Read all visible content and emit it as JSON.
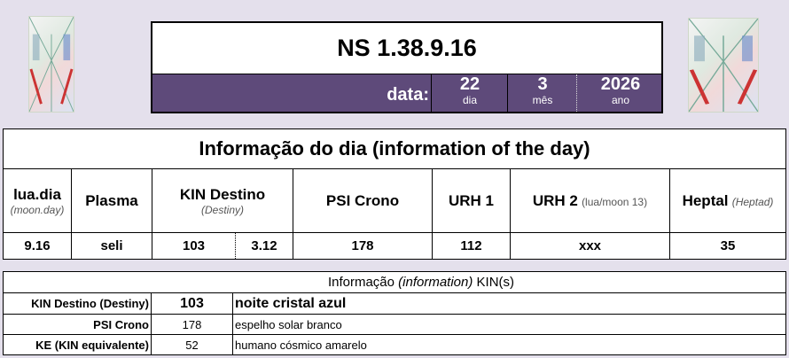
{
  "header": {
    "title": "NS 1.38.9.16",
    "date_label": "data:",
    "day": "22",
    "day_label": "dia",
    "month": "3",
    "month_label": "mês",
    "year": "2026",
    "year_label": "ano"
  },
  "info": {
    "title": "Informação do dia (information of the day)",
    "headers": [
      {
        "main": "lua.dia",
        "sub": "(moon.day)"
      },
      {
        "main": "Plasma"
      },
      {
        "main": "KIN Destino",
        "sub": "(Destiny)"
      },
      {
        "main": "PSI Crono"
      },
      {
        "main": "URH 1"
      },
      {
        "main": "URH 2",
        "sub": "(lua/moon 13)"
      },
      {
        "main": "Heptal",
        "sub": "(Heptad)"
      }
    ],
    "values": [
      "9.16",
      "seli",
      "103",
      "3.12",
      "178",
      "112",
      "xxx",
      "35"
    ]
  },
  "kin": {
    "title_a": "Informação ",
    "title_b": "(information)",
    "title_c": " KIN(s)",
    "rows": [
      {
        "label": "KIN Destino (Destiny)",
        "num": "103",
        "name": "noite cristal azul"
      },
      {
        "label": "PSI Crono",
        "num": "178",
        "name": "espelho solar branco"
      },
      {
        "label": "KE (KIN equivalente)",
        "num": "52",
        "name": "humano cósmico amarelo"
      }
    ]
  },
  "colors": {
    "background": "#e4e0ec",
    "date_bar": "#5e4a7a"
  }
}
